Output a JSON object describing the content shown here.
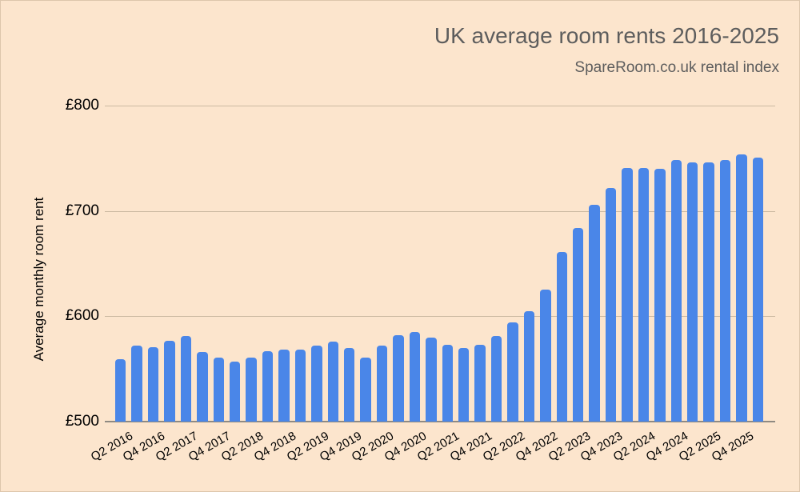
{
  "header": {
    "title": "UK average room rents 2016-2025",
    "subtitle": "SpareRoom.co.uk rental index"
  },
  "chart_data": {
    "type": "bar",
    "title": "UK average room rents 2016-2025",
    "subtitle": "SpareRoom.co.uk rental index",
    "xlabel": "",
    "ylabel": "Average monthly room rent",
    "ylim": [
      500,
      800
    ],
    "grid": "horizontal",
    "legend": "none",
    "background_color": "#fce5cd",
    "bar_color": "#4a86e8",
    "y_ticks": [
      {
        "label": "£800",
        "value": 800
      },
      {
        "label": "£700",
        "value": 700
      },
      {
        "label": "£600",
        "value": 600
      },
      {
        "label": "£500",
        "value": 500
      }
    ],
    "categories": [
      "Q1 2016",
      "Q2 2016",
      "Q3 2016",
      "Q4 2016",
      "Q1 2017",
      "Q2 2017",
      "Q3 2017",
      "Q4 2017",
      "Q1 2018",
      "Q2 2018",
      "Q3 2018",
      "Q4 2018",
      "Q1 2019",
      "Q2 2019",
      "Q3 2019",
      "Q4 2019",
      "Q1 2020",
      "Q2 2020",
      "Q3 2020",
      "Q4 2020",
      "Q1 2021",
      "Q2 2021",
      "Q3 2021",
      "Q4 2021",
      "Q1 2022",
      "Q2 2022",
      "Q3 2022",
      "Q4 2022",
      "Q1 2023",
      "Q2 2023",
      "Q3 2023",
      "Q4 2023",
      "Q1 2024",
      "Q2 2024",
      "Q3 2024",
      "Q4 2024",
      "Q1 2025",
      "Q2 2025",
      "Q3 2025",
      "Q4 2025"
    ],
    "values": [
      559,
      572,
      571,
      577,
      581,
      566,
      561,
      557,
      561,
      567,
      568,
      568,
      572,
      576,
      570,
      561,
      572,
      582,
      585,
      580,
      573,
      570,
      573,
      581,
      594,
      605,
      625,
      661,
      684,
      706,
      722,
      741,
      741,
      740,
      748,
      746,
      746,
      748,
      754,
      751
    ],
    "x_tick_labels_shown": [
      "Q2 2016",
      "Q4 2016",
      "Q2 2017",
      "Q4 2017",
      "Q2 2018",
      "Q4 2018",
      "Q2 2019",
      "Q4 2019",
      "Q2 2020",
      "Q4 2020",
      "Q2 2021",
      "Q4 2021",
      "Q2 2022",
      "Q4 2022",
      "Q2 2023",
      "Q4 2023",
      "Q2 2024",
      "Q4 2024",
      "Q2 2025",
      "Q4 2025"
    ],
    "x_tick_shown_every": 2
  }
}
